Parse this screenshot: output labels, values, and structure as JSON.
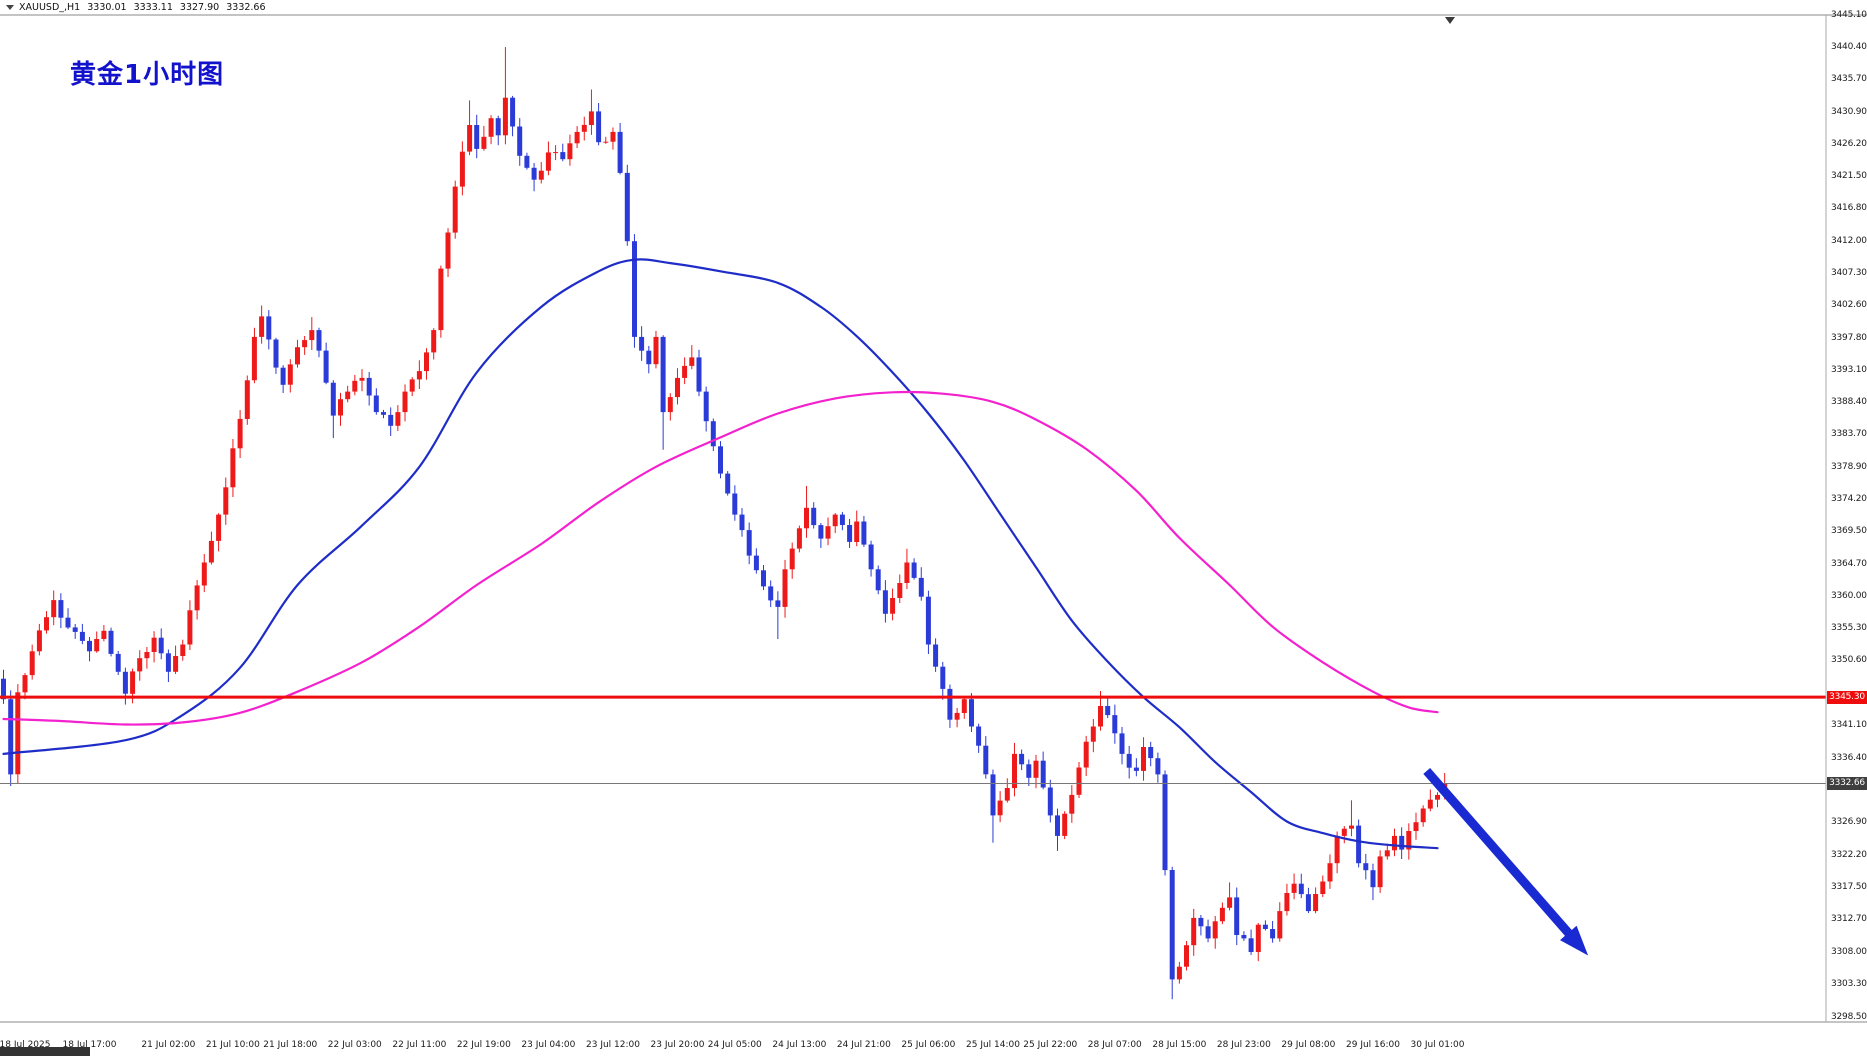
{
  "window": {
    "top_bar": {
      "symbol": "XAUUSD_,H1",
      "open": "3330.01",
      "high": "3333.11",
      "low": "3327.90",
      "close": "3332.66"
    }
  },
  "annotations": {
    "title": {
      "text": "黄金1小时图",
      "color": "#1212cc"
    },
    "resistance_line": {
      "price": 3345.3,
      "label": "3345.30",
      "color": "#ee0c0c"
    },
    "current_price": {
      "price": 3332.66,
      "label": "3332.66",
      "line_color": "#777777",
      "label_bg": "#3f3f3f"
    },
    "trend_arrow": {
      "color": "#1a2ad2",
      "from_bar": 198.5,
      "from_price": 3334.5,
      "to_bar": 221,
      "to_price": 3307.5
    }
  },
  "axes": {
    "price_ticks": [
      "3445.10",
      "3440.40",
      "3435.70",
      "3430.90",
      "3426.20",
      "3421.50",
      "3416.80",
      "3412.00",
      "3407.30",
      "3402.60",
      "3397.80",
      "3393.10",
      "3388.40",
      "3383.70",
      "3378.90",
      "3374.20",
      "3369.50",
      "3364.70",
      "3360.00",
      "3355.30",
      "3350.60",
      "3341.10",
      "3336.40",
      "3326.90",
      "3322.20",
      "3317.50",
      "3312.70",
      "3308.00",
      "3303.30",
      "3298.50"
    ],
    "time_labels": [
      {
        "bar": 3,
        "text": "18 Jul 2025"
      },
      {
        "bar": 12,
        "text": "18 Jul 17:00"
      },
      {
        "bar": 23,
        "text": "21 Jul 02:00"
      },
      {
        "bar": 32,
        "text": "21 Jul 10:00"
      },
      {
        "bar": 40,
        "text": "21 Jul 18:00"
      },
      {
        "bar": 49,
        "text": "22 Jul 03:00"
      },
      {
        "bar": 58,
        "text": "22 Jul 11:00"
      },
      {
        "bar": 67,
        "text": "22 Jul 19:00"
      },
      {
        "bar": 76,
        "text": "23 Jul 04:00"
      },
      {
        "bar": 85,
        "text": "23 Jul 12:00"
      },
      {
        "bar": 94,
        "text": "23 Jul 20:00"
      },
      {
        "bar": 102,
        "text": "24 Jul 05:00"
      },
      {
        "bar": 111,
        "text": "24 Jul 13:00"
      },
      {
        "bar": 120,
        "text": "24 Jul 21:00"
      },
      {
        "bar": 129,
        "text": "25 Jul 06:00"
      },
      {
        "bar": 138,
        "text": "25 Jul 14:00"
      },
      {
        "bar": 146,
        "text": "25 Jul 22:00"
      },
      {
        "bar": 155,
        "text": "28 Jul 07:00"
      },
      {
        "bar": 164,
        "text": "28 Jul 15:00"
      },
      {
        "bar": 173,
        "text": "28 Jul 23:00"
      },
      {
        "bar": 182,
        "text": "29 Jul 08:00"
      },
      {
        "bar": 191,
        "text": "29 Jul 16:00"
      },
      {
        "bar": 200,
        "text": "30 Jul 01:00"
      }
    ]
  },
  "chart_data": {
    "type": "candlestick",
    "symbol": "XAUUSD_",
    "timeframe": "H1",
    "current_bar_ohlc": {
      "open": 3330.01,
      "high": 3333.11,
      "low": 3327.9,
      "close": 3332.66
    },
    "visible_price_range": [
      3298.5,
      3445.1
    ],
    "bars_total": 202,
    "up_color": "#ee1a1a",
    "down_color": "#2b3bd7",
    "support_resistance": [
      3345.3
    ],
    "last_price": 3332.66,
    "close_path_anchors": [
      [
        0,
        3345
      ],
      [
        1,
        3334
      ],
      [
        2,
        3346
      ],
      [
        4,
        3352
      ],
      [
        6,
        3357
      ],
      [
        7,
        3359.5
      ],
      [
        9,
        3355.5
      ],
      [
        12,
        3352
      ],
      [
        14,
        3355
      ],
      [
        16,
        3349
      ],
      [
        17,
        3345.8
      ],
      [
        19,
        3351
      ],
      [
        21,
        3354
      ],
      [
        23,
        3349
      ],
      [
        25,
        3353
      ],
      [
        26,
        3358
      ],
      [
        28,
        3365
      ],
      [
        30,
        3372
      ],
      [
        31,
        3376
      ],
      [
        33,
        3386
      ],
      [
        35,
        3398
      ],
      [
        36,
        3401
      ],
      [
        38,
        3393.5
      ],
      [
        39,
        3391
      ],
      [
        41,
        3396.5
      ],
      [
        43,
        3399
      ],
      [
        44,
        3396
      ],
      [
        46,
        3386.5
      ],
      [
        48,
        3390
      ],
      [
        50,
        3392
      ],
      [
        52,
        3387
      ],
      [
        54,
        3385
      ],
      [
        56,
        3390
      ],
      [
        58,
        3393
      ],
      [
        60,
        3399
      ],
      [
        61,
        3408
      ],
      [
        63,
        3420
      ],
      [
        65,
        3429
      ],
      [
        66,
        3425.5
      ],
      [
        68,
        3430
      ],
      [
        69,
        3427.5
      ],
      [
        70,
        3433
      ],
      [
        72,
        3424.5
      ],
      [
        74,
        3421
      ],
      [
        76,
        3425
      ],
      [
        78,
        3424
      ],
      [
        80,
        3428
      ],
      [
        82,
        3431
      ],
      [
        83,
        3426.5
      ],
      [
        85,
        3428
      ],
      [
        86,
        3422
      ],
      [
        87,
        3412
      ],
      [
        88,
        3398
      ],
      [
        90,
        3394
      ],
      [
        91,
        3398
      ],
      [
        92,
        3387
      ],
      [
        94,
        3392
      ],
      [
        96,
        3395
      ],
      [
        97,
        3390
      ],
      [
        99,
        3382
      ],
      [
        100,
        3378
      ],
      [
        102,
        3372
      ],
      [
        104,
        3366
      ],
      [
        106,
        3361.5
      ],
      [
        108,
        3358.5
      ],
      [
        109,
        3364
      ],
      [
        111,
        3370
      ],
      [
        112,
        3373
      ],
      [
        114,
        3368.5
      ],
      [
        116,
        3372
      ],
      [
        118,
        3368
      ],
      [
        119,
        3371
      ],
      [
        121,
        3364
      ],
      [
        123,
        3357.5
      ],
      [
        125,
        3362
      ],
      [
        126,
        3365
      ],
      [
        128,
        3360
      ],
      [
        129,
        3353
      ],
      [
        131,
        3346.5
      ],
      [
        132,
        3342
      ],
      [
        134,
        3345
      ],
      [
        135,
        3341
      ],
      [
        137,
        3334
      ],
      [
        138,
        3328
      ],
      [
        140,
        3332
      ],
      [
        141,
        3337
      ],
      [
        143,
        3333.5
      ],
      [
        144,
        3336
      ],
      [
        146,
        3328
      ],
      [
        147,
        3325
      ],
      [
        149,
        3331
      ],
      [
        150,
        3335
      ],
      [
        152,
        3341
      ],
      [
        153,
        3344
      ],
      [
        155,
        3340
      ],
      [
        156,
        3337
      ],
      [
        158,
        3334.5
      ],
      [
        159,
        3338
      ],
      [
        161,
        3334
      ],
      [
        162,
        3320
      ],
      [
        163,
        3304
      ],
      [
        165,
        3309
      ],
      [
        166,
        3313
      ],
      [
        168,
        3310
      ],
      [
        169,
        3312.5
      ],
      [
        171,
        3316
      ],
      [
        172,
        3310.5
      ],
      [
        174,
        3308
      ],
      [
        175,
        3312
      ],
      [
        177,
        3310
      ],
      [
        178,
        3314
      ],
      [
        180,
        3318
      ],
      [
        182,
        3314
      ],
      [
        183,
        3316.5
      ],
      [
        185,
        3321
      ],
      [
        186,
        3325
      ],
      [
        188,
        3326.5
      ],
      [
        189,
        3321
      ],
      [
        191,
        3317.5
      ],
      [
        192,
        3322
      ],
      [
        194,
        3325
      ],
      [
        195,
        3323
      ],
      [
        197,
        3327
      ],
      [
        198,
        3329
      ],
      [
        200,
        3331
      ],
      [
        201,
        3332.66
      ]
    ],
    "extreme_wicks": [
      [
        1,
        "l",
        3332.3
      ],
      [
        7,
        "h",
        3360.9
      ],
      [
        17,
        "l",
        3344.2
      ],
      [
        36,
        "h",
        3402.6
      ],
      [
        43,
        "h",
        3400.9
      ],
      [
        46,
        "l",
        3383.2
      ],
      [
        54,
        "l",
        3383.5
      ],
      [
        65,
        "h",
        3432.6
      ],
      [
        70,
        "h",
        3440.4
      ],
      [
        74,
        "l",
        3419.3
      ],
      [
        82,
        "h",
        3434.2
      ],
      [
        92,
        "l",
        3381.5
      ],
      [
        96,
        "h",
        3396.8
      ],
      [
        108,
        "l",
        3353.8
      ],
      [
        112,
        "h",
        3376.2
      ],
      [
        123,
        "l",
        3356.2
      ],
      [
        126,
        "h",
        3367
      ],
      [
        138,
        "l",
        3324
      ],
      [
        147,
        "l",
        3322.8
      ],
      [
        153,
        "h",
        3346.2
      ],
      [
        163,
        "l",
        3301.1
      ],
      [
        171,
        "h",
        3318.2
      ],
      [
        180,
        "h",
        3319.5
      ],
      [
        188,
        "h",
        3330.2
      ],
      [
        191,
        "l",
        3315.6
      ],
      [
        201,
        "h",
        3334.2
      ]
    ],
    "moving_averages": [
      {
        "name": "MA-fast-blue",
        "color": "#1f2dc8",
        "points": [
          [
            0,
            3337
          ],
          [
            17,
            3339
          ],
          [
            25,
            3342.7
          ],
          [
            33,
            3349.6
          ],
          [
            41,
            3361.7
          ],
          [
            50,
            3370.4
          ],
          [
            58,
            3379
          ],
          [
            66,
            3392.8
          ],
          [
            75,
            3402.4
          ],
          [
            83,
            3407.6
          ],
          [
            88,
            3409.3
          ],
          [
            93,
            3408.8
          ],
          [
            100,
            3407.6
          ],
          [
            108,
            3405.9
          ],
          [
            114,
            3402.4
          ],
          [
            119,
            3398.1
          ],
          [
            124,
            3392.8
          ],
          [
            129,
            3386.8
          ],
          [
            134,
            3379.9
          ],
          [
            139,
            3372.1
          ],
          [
            144,
            3364.3
          ],
          [
            149,
            3356.5
          ],
          [
            154,
            3350.5
          ],
          [
            159,
            3345.3
          ],
          [
            164,
            3340.9
          ],
          [
            169,
            3335.8
          ],
          [
            174,
            3331.4
          ],
          [
            179,
            3327.1
          ],
          [
            184,
            3325.4
          ],
          [
            189,
            3324.2
          ],
          [
            194,
            3323.6
          ],
          [
            200,
            3323.2
          ]
        ]
      },
      {
        "name": "MA-slow-magenta",
        "color": "#f321ce",
        "points": [
          [
            0,
            3342.1
          ],
          [
            8,
            3341.8
          ],
          [
            17,
            3341.3
          ],
          [
            25,
            3341.6
          ],
          [
            33,
            3343
          ],
          [
            41,
            3346.1
          ],
          [
            50,
            3350.4
          ],
          [
            58,
            3355.6
          ],
          [
            66,
            3361.7
          ],
          [
            75,
            3367.7
          ],
          [
            83,
            3373.8
          ],
          [
            91,
            3379
          ],
          [
            100,
            3383.3
          ],
          [
            108,
            3386.8
          ],
          [
            116,
            3389
          ],
          [
            124,
            3389.9
          ],
          [
            131,
            3389.7
          ],
          [
            138,
            3388.5
          ],
          [
            144,
            3385.9
          ],
          [
            151,
            3381.6
          ],
          [
            158,
            3375.5
          ],
          [
            164,
            3368.6
          ],
          [
            171,
            3361.7
          ],
          [
            177,
            3355.6
          ],
          [
            184,
            3350.4
          ],
          [
            191,
            3346.1
          ],
          [
            196,
            3343.8
          ],
          [
            200,
            3343.1
          ]
        ]
      }
    ]
  }
}
